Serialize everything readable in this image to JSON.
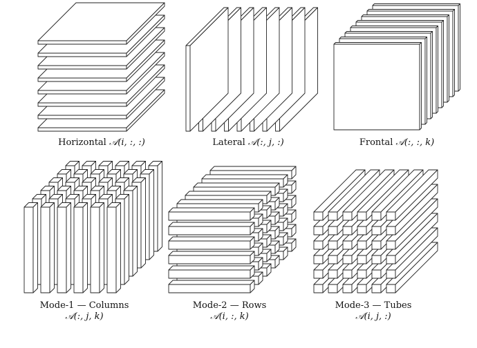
{
  "captions": {
    "horizontal": {
      "name": "Horizontal",
      "expr": "𝒜(i, :, :)"
    },
    "lateral": {
      "name": "Lateral",
      "expr": "𝒜(:, j, :)"
    },
    "frontal": {
      "name": "Frontal",
      "expr": "𝒜(:, :, k)"
    },
    "mode1": {
      "name": "Mode-1 — Columns",
      "expr": "𝒜(:, j, k)"
    },
    "mode2": {
      "name": "Mode-2 — Rows",
      "expr": "𝒜(i, :, k)"
    },
    "mode3": {
      "name": "Mode-3 — Tubes",
      "expr": "𝒜(i, j, :)"
    }
  },
  "style": {
    "stroke": "#222222",
    "fill": "#ffffff"
  }
}
